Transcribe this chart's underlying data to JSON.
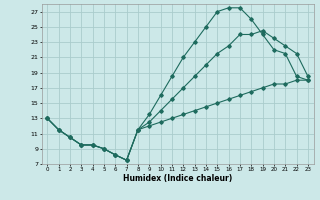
{
  "xlabel": "Humidex (Indice chaleur)",
  "bg_color": "#cce8e8",
  "grid_color": "#aacccc",
  "line_color": "#1e6b5e",
  "xlim": [
    -0.5,
    23.5
  ],
  "ylim": [
    7,
    28
  ],
  "yticks": [
    7,
    9,
    11,
    13,
    15,
    17,
    19,
    21,
    23,
    25,
    27
  ],
  "xticks": [
    0,
    1,
    2,
    3,
    4,
    5,
    6,
    7,
    8,
    9,
    10,
    11,
    12,
    13,
    14,
    15,
    16,
    17,
    18,
    19,
    20,
    21,
    22,
    23
  ],
  "line1_x": [
    0,
    1,
    2,
    3,
    4,
    5,
    6,
    7,
    8,
    9,
    10,
    11,
    12,
    13,
    14,
    15,
    16,
    17,
    18,
    19,
    20,
    21,
    22,
    23
  ],
  "line1_y": [
    13,
    11.5,
    10.5,
    9.5,
    9.5,
    9.0,
    8.2,
    7.5,
    11.5,
    12.0,
    12.5,
    13.0,
    13.5,
    14.0,
    14.5,
    15.0,
    15.5,
    16.0,
    16.5,
    17.0,
    17.5,
    17.5,
    18.0,
    18.0
  ],
  "line2_x": [
    0,
    1,
    2,
    3,
    4,
    5,
    6,
    7,
    8,
    9,
    10,
    11,
    12,
    13,
    14,
    15,
    16,
    17,
    18,
    19,
    20,
    21,
    22,
    23
  ],
  "line2_y": [
    13,
    11.5,
    10.5,
    9.5,
    9.5,
    9.0,
    8.2,
    7.5,
    11.5,
    13.5,
    16.0,
    18.5,
    21.0,
    23.0,
    25.0,
    27.0,
    27.5,
    27.5,
    26.0,
    24.0,
    22.0,
    21.5,
    18.5,
    18.0
  ],
  "line3_x": [
    0,
    1,
    2,
    3,
    4,
    5,
    6,
    7,
    8,
    9,
    10,
    11,
    12,
    13,
    14,
    15,
    16,
    17,
    18,
    19,
    20,
    21,
    22,
    23
  ],
  "line3_y": [
    13,
    11.5,
    10.5,
    9.5,
    9.5,
    9.0,
    8.2,
    7.5,
    11.5,
    12.5,
    14.0,
    15.5,
    17.0,
    18.5,
    20.0,
    21.5,
    22.5,
    24.0,
    24.0,
    24.5,
    23.5,
    22.5,
    21.5,
    18.5
  ]
}
